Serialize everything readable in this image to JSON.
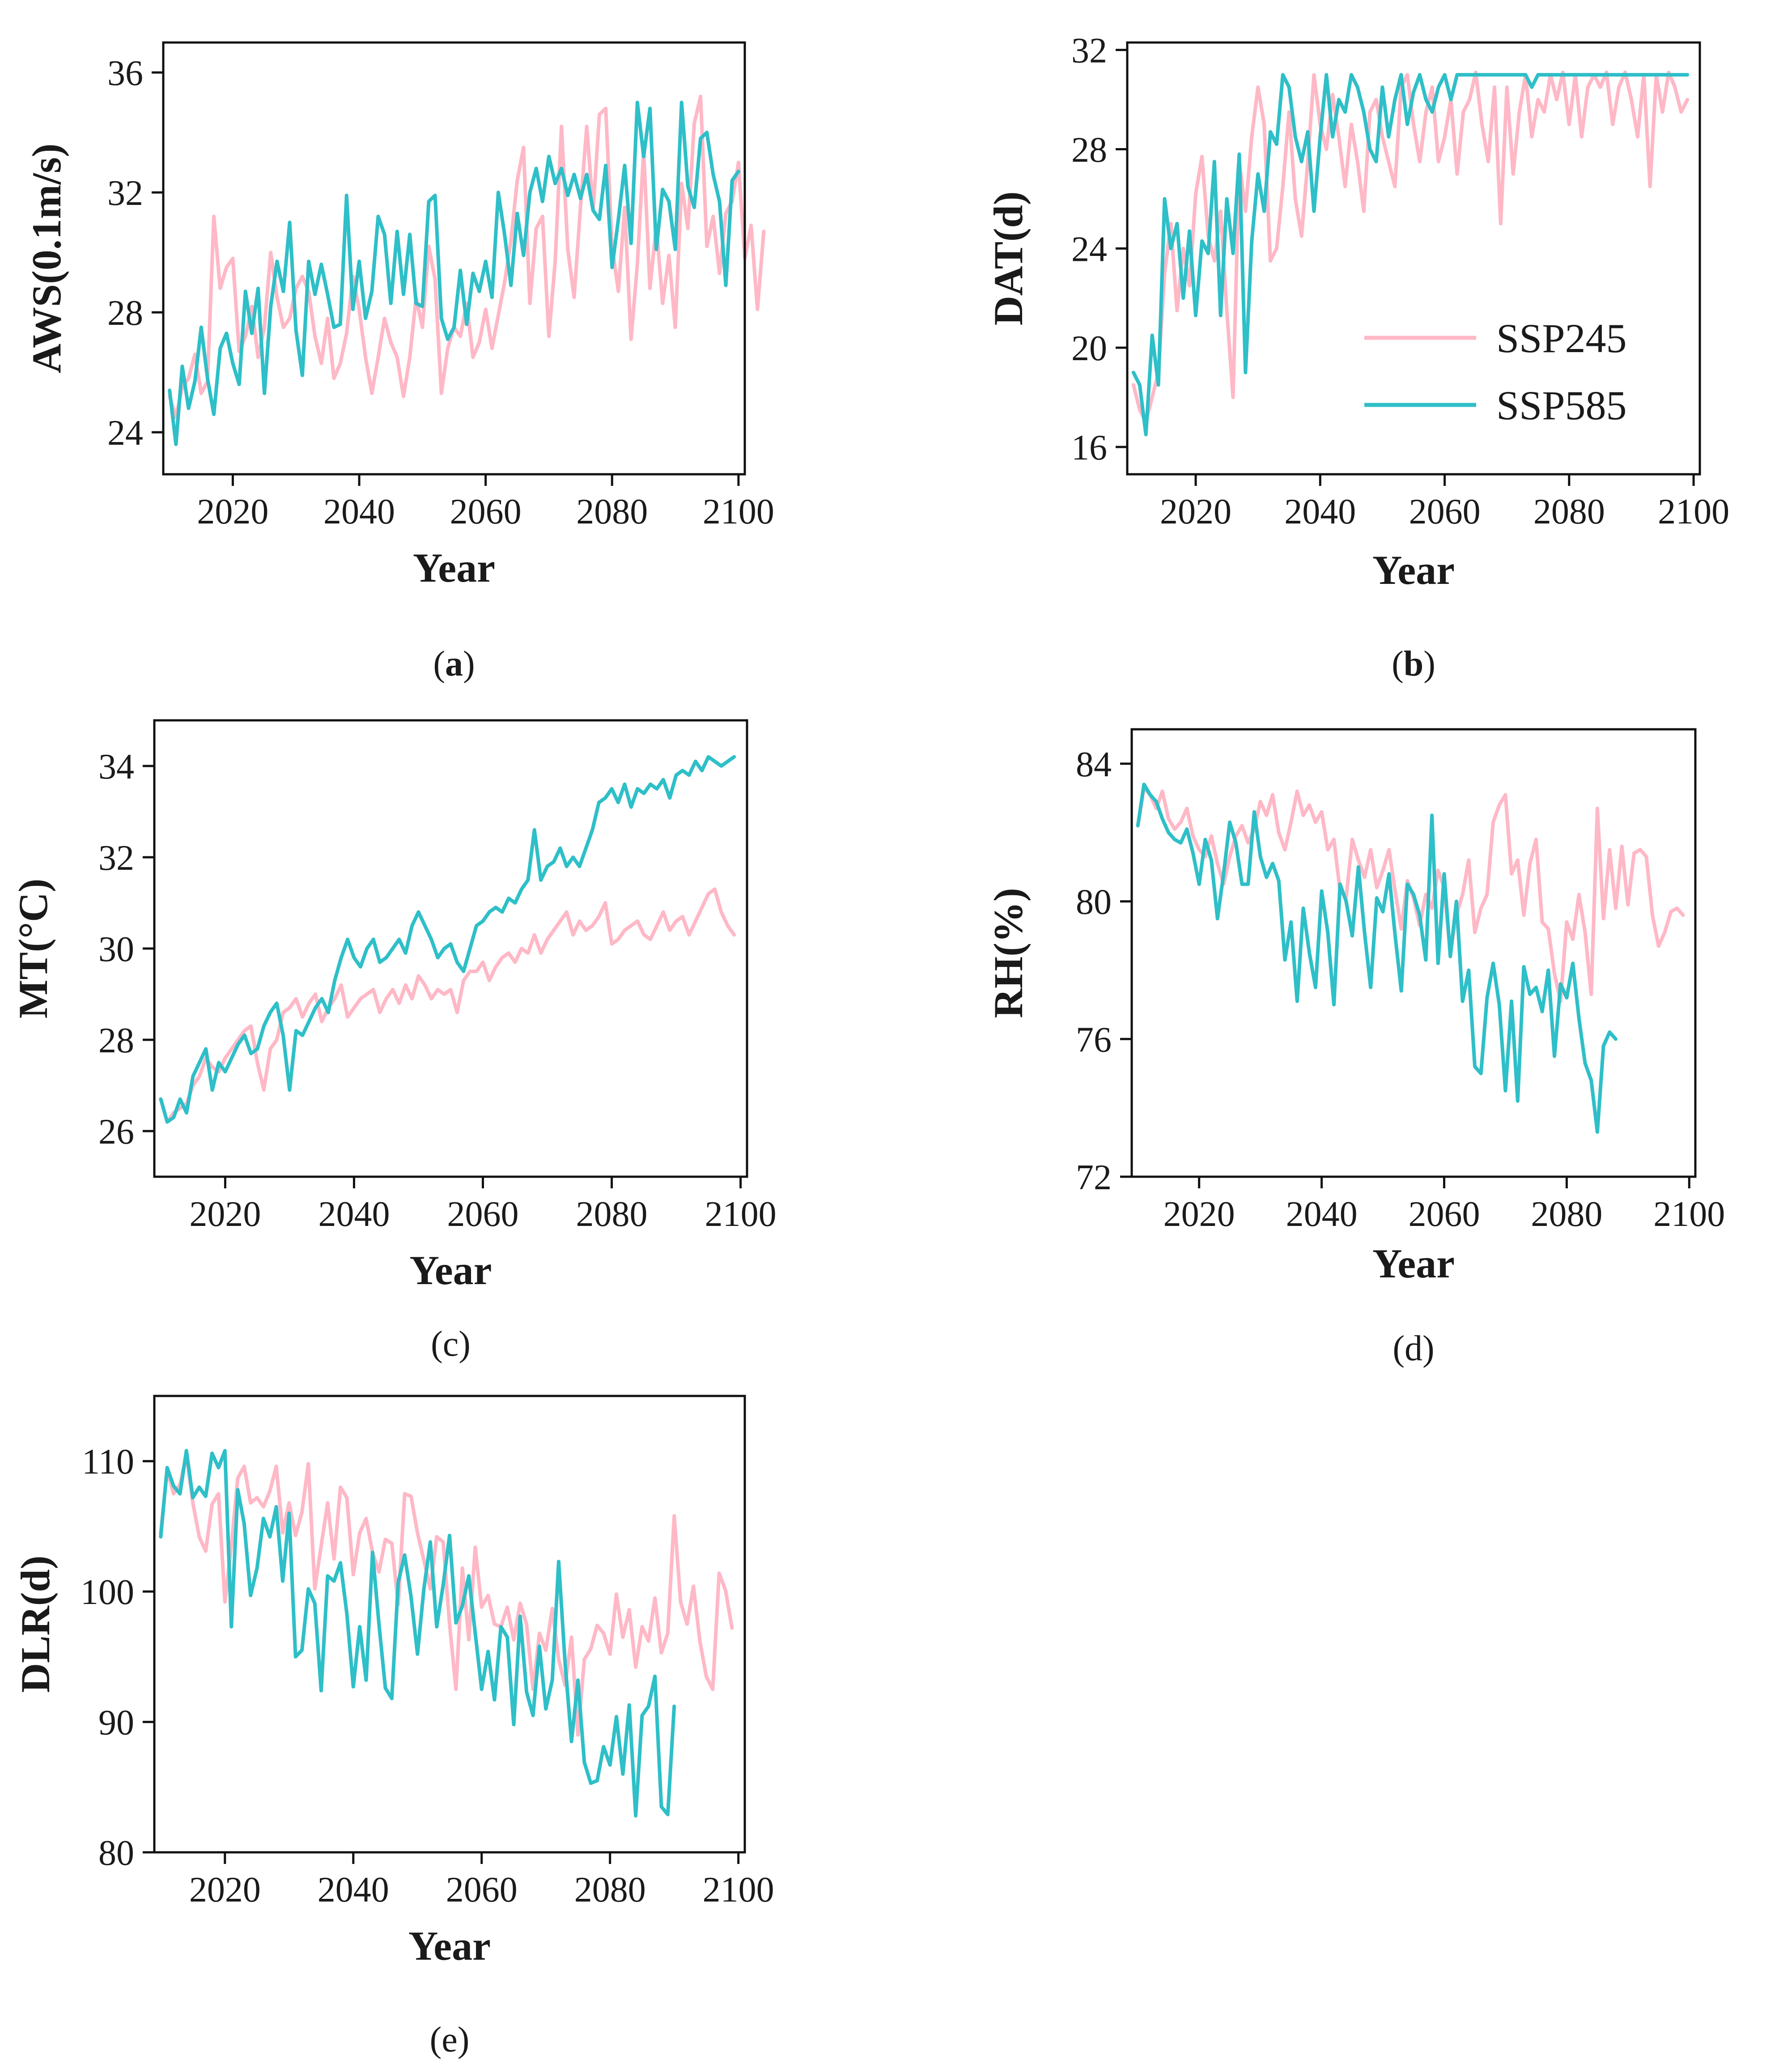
{
  "chart_data": [
    {
      "type": "line",
      "panel_label": "(a)",
      "xlabel": "Year",
      "ylabel": "AWS(0.1m/s)",
      "xlim": [
        2009,
        2101
      ],
      "ylim": [
        22.6,
        37
      ],
      "xticks": [
        2020,
        2040,
        2060,
        2080,
        2100
      ],
      "yticks": [
        24,
        28,
        32,
        36
      ],
      "x_start": 2010,
      "show_legend": false,
      "series": [
        {
          "name": "SSP245",
          "values": [
            25.2,
            24.5,
            25.5,
            25.8,
            26.6,
            25.3,
            25.7,
            31.2,
            28.8,
            29.5,
            29.8,
            26.7,
            27.2,
            28.2,
            26.5,
            27.5,
            30,
            28.5,
            27.5,
            27.8,
            28.8,
            29.2,
            28.7,
            27.2,
            26.3,
            27.8,
            25.8,
            26.3,
            27.3,
            29.2,
            28.1,
            26.5,
            25.3,
            26.5,
            27.8,
            27,
            26.5,
            25.2,
            26.5,
            28.5,
            27.5,
            30.2,
            29.1,
            25.3,
            26.8,
            27.5,
            27.2,
            28.3,
            26.5,
            27,
            28.1,
            26.8,
            27.9,
            29,
            30.4,
            32.4,
            33.5,
            28.3,
            30.8,
            31.2,
            27.2,
            29.7,
            34.2,
            30.1,
            28.5,
            31.5,
            34.2,
            31.4,
            34.6,
            34.8,
            30.2,
            28.7,
            31.5,
            27.1,
            29.6,
            33.4,
            28.8,
            30.9,
            28.3,
            29.9,
            27.5,
            32.3,
            30.8,
            34.3,
            35.2,
            30.2,
            31.2,
            29.3,
            31.3,
            31.7,
            33,
            29.8,
            30.9,
            28.1,
            30.7
          ]
        },
        {
          "name": "SSP585",
          "values": [
            25.4,
            23.6,
            26.2,
            24.8,
            25.7,
            27.5,
            25.8,
            24.6,
            26.8,
            27.3,
            26.3,
            25.6,
            28.7,
            27.3,
            28.8,
            25.3,
            28.2,
            29.7,
            28.7,
            31,
            27.4,
            25.9,
            29.7,
            28.6,
            29.6,
            28.6,
            27.5,
            27.6,
            31.9,
            28.1,
            29.7,
            27.8,
            28.7,
            31.2,
            30.6,
            28.3,
            30.7,
            28.6,
            30.6,
            28.3,
            28.2,
            31.7,
            31.9,
            27.8,
            27.1,
            27.5,
            29.4,
            27.6,
            29.3,
            28.7,
            29.7,
            28.5,
            32,
            30.6,
            28.9,
            31.3,
            29.9,
            32,
            32.8,
            31.7,
            33.2,
            32.3,
            32.8,
            31.9,
            32.6,
            31.8,
            32.6,
            31.4,
            31.1,
            32.9,
            29.5,
            31.1,
            32.9,
            30.3,
            35,
            33.2,
            34.8,
            30.1,
            32.1,
            31.7,
            30.1,
            35,
            32.2,
            31.5,
            33.8,
            34,
            32.6,
            31.7,
            28.9,
            32.4,
            32.7
          ]
        }
      ]
    },
    {
      "type": "line",
      "panel_label": "(b)",
      "xlabel": "Year",
      "ylabel": "DAT(d)",
      "xlim": [
        2009,
        2101
      ],
      "ylim": [
        14.9,
        32.3
      ],
      "xticks": [
        2020,
        2040,
        2060,
        2080,
        2100
      ],
      "yticks": [
        16,
        20,
        24,
        28,
        32
      ],
      "x_start": 2010,
      "show_legend": true,
      "series": [
        {
          "name": "SSP245",
          "values": [
            18.5,
            17.5,
            17,
            18,
            19,
            23,
            25,
            21.5,
            24,
            22.5,
            26.2,
            27.7,
            24.5,
            23.5,
            25.5,
            21.5,
            18,
            27.5,
            25.5,
            28.5,
            30.5,
            29,
            23.5,
            24,
            26.5,
            29.5,
            26,
            24.5,
            27.5,
            31,
            29,
            28,
            30.2,
            28.5,
            26.5,
            29,
            27.5,
            25.5,
            29.5,
            30,
            28.5,
            27.5,
            26.5,
            30.5,
            31,
            29,
            27.5,
            29.5,
            30.5,
            27.5,
            28.5,
            30,
            27,
            29.5,
            30,
            31.1,
            29,
            27.5,
            30.5,
            25,
            30.5,
            27,
            29.5,
            31,
            28.5,
            30,
            29.5,
            31,
            30,
            31.1,
            29,
            31,
            28.5,
            30.5,
            31,
            30.5,
            31.1,
            29,
            30.5,
            31.1,
            30,
            28.5,
            31,
            26.5,
            31,
            29.5,
            31.1,
            30.5,
            29.5,
            30
          ]
        },
        {
          "name": "SSP585",
          "values": [
            19,
            18.5,
            16.5,
            20.5,
            18.5,
            26,
            24,
            25,
            22,
            24.7,
            21.3,
            24.3,
            23.8,
            27.5,
            21.3,
            26,
            23.8,
            27.8,
            19,
            24.3,
            27,
            25.5,
            28.7,
            28.2,
            31,
            30.5,
            28.5,
            27.5,
            28.7,
            25.5,
            28.5,
            31,
            28.5,
            30,
            29.5,
            31,
            30.5,
            29.5,
            28,
            27.5,
            30.5,
            28.5,
            30,
            31,
            29,
            30.3,
            31,
            30,
            29.5,
            30.5,
            31,
            30,
            31,
            31,
            31,
            31,
            31,
            31,
            31,
            31,
            31,
            31,
            31,
            31,
            30.5,
            31,
            31,
            31,
            31,
            31,
            31,
            31,
            31,
            31,
            31,
            31,
            31,
            31,
            31,
            31,
            31,
            31,
            31,
            31,
            31,
            31,
            31,
            31,
            31,
            31
          ]
        }
      ],
      "legend": [
        "SSP245",
        "SSP585"
      ]
    },
    {
      "type": "line",
      "panel_label": "(c)",
      "xlabel": "Year",
      "ylabel": "MT(°C)",
      "xlim": [
        2009,
        2101
      ],
      "ylim": [
        25,
        35
      ],
      "xticks": [
        2020,
        2040,
        2060,
        2080,
        2100
      ],
      "yticks": [
        26,
        28,
        30,
        32,
        34
      ],
      "x_start": 2010,
      "show_legend": false,
      "series": [
        {
          "name": "SSP245",
          "values": [
            26.7,
            26.2,
            26.4,
            26.5,
            26.6,
            27,
            27.2,
            27.6,
            27.4,
            27.3,
            27.6,
            27.8,
            28,
            28.2,
            28.3,
            27.5,
            26.9,
            27.8,
            28,
            28.6,
            28.7,
            28.9,
            28.5,
            28.8,
            29,
            28.4,
            28.7,
            28.9,
            29.2,
            28.5,
            28.7,
            28.9,
            29,
            29.1,
            28.6,
            28.9,
            29.1,
            28.8,
            29.2,
            28.9,
            29.4,
            29.2,
            28.9,
            29.1,
            29,
            29.1,
            28.6,
            29.3,
            29.5,
            29.5,
            29.7,
            29.3,
            29.6,
            29.8,
            29.9,
            29.7,
            30,
            29.9,
            30.3,
            29.9,
            30.2,
            30.4,
            30.6,
            30.8,
            30.3,
            30.6,
            30.4,
            30.5,
            30.7,
            31,
            30.1,
            30.2,
            30.4,
            30.5,
            30.6,
            30.3,
            30.2,
            30.5,
            30.8,
            30.4,
            30.6,
            30.7,
            30.3,
            30.6,
            30.9,
            31.2,
            31.3,
            30.8,
            30.5,
            30.3
          ]
        },
        {
          "name": "SSP585",
          "values": [
            26.7,
            26.2,
            26.3,
            26.7,
            26.4,
            27.2,
            27.5,
            27.8,
            26.9,
            27.5,
            27.3,
            27.6,
            27.9,
            28.1,
            27.7,
            27.8,
            28.3,
            28.6,
            28.8,
            28.1,
            26.9,
            28.2,
            28.1,
            28.4,
            28.7,
            28.9,
            28.6,
            29.3,
            29.8,
            30.2,
            29.8,
            29.6,
            30,
            30.2,
            29.7,
            29.8,
            30,
            30.2,
            29.9,
            30.5,
            30.8,
            30.5,
            30.2,
            29.8,
            30,
            30.1,
            29.7,
            29.5,
            30,
            30.5,
            30.6,
            30.8,
            30.9,
            30.8,
            31.1,
            31,
            31.3,
            31.5,
            32.6,
            31.5,
            31.8,
            31.9,
            32.2,
            31.8,
            32,
            31.8,
            32.2,
            32.6,
            33.2,
            33.3,
            33.5,
            33.2,
            33.6,
            33.1,
            33.5,
            33.4,
            33.6,
            33.5,
            33.7,
            33.3,
            33.8,
            33.9,
            33.8,
            34.1,
            33.9,
            34.2,
            34.1,
            34,
            34.1,
            34.2
          ]
        }
      ]
    },
    {
      "type": "line",
      "panel_label": "(d)",
      "xlabel": "Year",
      "ylabel": "RH(%)",
      "xlim": [
        2009,
        2101
      ],
      "ylim": [
        72,
        85
      ],
      "xticks": [
        2020,
        2040,
        2060,
        2080,
        2100
      ],
      "yticks": [
        72,
        76,
        80,
        84
      ],
      "x_start": 2010,
      "show_legend": false,
      "series": [
        {
          "name": "SSP245",
          "values": [
            82.2,
            83.3,
            83.1,
            82.7,
            83.2,
            82.4,
            82.1,
            82.3,
            82.7,
            81.9,
            81.5,
            81.3,
            81.9,
            81.1,
            80.5,
            81.3,
            81.9,
            82.2,
            81.7,
            82.1,
            82.9,
            82.5,
            83.1,
            82,
            81.5,
            82.3,
            83.2,
            82.5,
            82.8,
            82.3,
            82.6,
            81.5,
            81.8,
            80.3,
            80.1,
            81.8,
            81.2,
            80.7,
            81.5,
            80.4,
            80.9,
            81.5,
            80.3,
            79.2,
            80.6,
            80.1,
            79.3,
            80.2,
            79.8,
            80.9,
            80.4,
            78.5,
            79.6,
            80.2,
            81.2,
            79.1,
            79.8,
            80.2,
            82.3,
            82.8,
            83.1,
            80.8,
            81.2,
            79.6,
            81.1,
            81.8,
            79.4,
            79.2,
            77.9,
            77.1,
            79.4,
            78.9,
            80.2,
            79.1,
            77.3,
            82.7,
            79.5,
            81.5,
            79.8,
            81.6,
            79.9,
            81.4,
            81.5,
            81.3,
            79.6,
            78.7,
            79.1,
            79.7,
            79.8,
            79.6
          ]
        },
        {
          "name": "SSP585",
          "values": [
            82.2,
            83.4,
            83.1,
            82.9,
            82.4,
            82,
            81.8,
            81.7,
            82.1,
            81.4,
            80.5,
            81.8,
            81.2,
            79.5,
            80.8,
            82.3,
            81.7,
            80.5,
            80.5,
            82.6,
            81.3,
            80.7,
            81.1,
            80.6,
            78.3,
            79.4,
            77.1,
            79.8,
            78.5,
            77.5,
            80.3,
            79.1,
            77,
            80.5,
            80,
            79,
            81,
            79.1,
            77.5,
            80.1,
            79.7,
            80.8,
            79,
            77.4,
            80.5,
            80.2,
            79.6,
            78.3,
            82.5,
            78.2,
            80.8,
            78.4,
            80,
            77.1,
            78,
            75.2,
            75,
            77.2,
            78.2,
            77,
            74.5,
            77.1,
            74.2,
            78.1,
            77.3,
            77.5,
            76.8,
            78,
            75.5,
            77.6,
            77.2,
            78.2,
            76.6,
            75.3,
            74.8,
            73.3,
            75.8,
            76.2,
            76
          ]
        }
      ]
    },
    {
      "type": "line",
      "panel_label": "(e)",
      "xlabel": "Year",
      "ylabel": "DLR(d)",
      "xlim": [
        2009,
        2101
      ],
      "ylim": [
        80,
        115
      ],
      "xticks": [
        2020,
        2040,
        2060,
        2080,
        2100
      ],
      "yticks": [
        80,
        90,
        100,
        110
      ],
      "x_start": 2010,
      "show_legend": false,
      "series": [
        {
          "name": "SSP245",
          "values": [
            104.5,
            109.3,
            107.5,
            108.2,
            110.5,
            106.8,
            104.2,
            103.1,
            106.7,
            107.5,
            99.2,
            103.5,
            108.7,
            109.6,
            106.8,
            107.2,
            106.5,
            107.7,
            109.6,
            104.5,
            106.8,
            104.3,
            106.1,
            109.8,
            100.2,
            103.5,
            106.8,
            102.5,
            108,
            107.2,
            101.3,
            104.5,
            105.6,
            103,
            101.5,
            104,
            103.7,
            99,
            107.5,
            107.3,
            104.5,
            102.4,
            100.2,
            104.2,
            103.8,
            97.5,
            92.5,
            101.8,
            96.3,
            103.4,
            98.8,
            99.7,
            97.5,
            97.3,
            98.8,
            96.3,
            99.1,
            97.5,
            92.5,
            96.8,
            95.5,
            98.7,
            94.8,
            92.8,
            96.5,
            89,
            94.8,
            95.6,
            97.4,
            96.8,
            95.2,
            99.8,
            96.5,
            98.6,
            94.2,
            97.3,
            96.2,
            99.5,
            95.3,
            96.8,
            105.8,
            99.2,
            97.5,
            100.4,
            96.2,
            93.5,
            92.5,
            101.4,
            100.1,
            97.2
          ]
        },
        {
          "name": "SSP585",
          "values": [
            104.2,
            109.5,
            108.1,
            107.5,
            110.8,
            107.2,
            108,
            107.3,
            110.6,
            109.5,
            110.8,
            97.3,
            107.8,
            105.2,
            99.7,
            101.8,
            105.6,
            104.2,
            106.5,
            100.8,
            106,
            95,
            95.5,
            100.2,
            99.1,
            92.4,
            101.2,
            100.8,
            102.2,
            98.3,
            92.7,
            97.3,
            93.2,
            103,
            97.5,
            92.6,
            91.8,
            100.7,
            102.8,
            99.6,
            95.2,
            100.2,
            103.8,
            97.3,
            100.5,
            104.3,
            97.6,
            98.9,
            101.2,
            96.8,
            92.5,
            95.4,
            91.7,
            97.3,
            96.5,
            89.8,
            98.1,
            92.3,
            90.5,
            95.8,
            91,
            93.2,
            102.3,
            94.5,
            88.5,
            93.2,
            86.9,
            85.3,
            85.5,
            88.1,
            86.7,
            90.4,
            86,
            91.3,
            82.8,
            90.5,
            91.2,
            93.5,
            83.5,
            82.9,
            91.2
          ]
        }
      ]
    }
  ],
  "colors": {
    "SSP245": "#ffb8c6",
    "SSP585": "#2ebfc8"
  }
}
